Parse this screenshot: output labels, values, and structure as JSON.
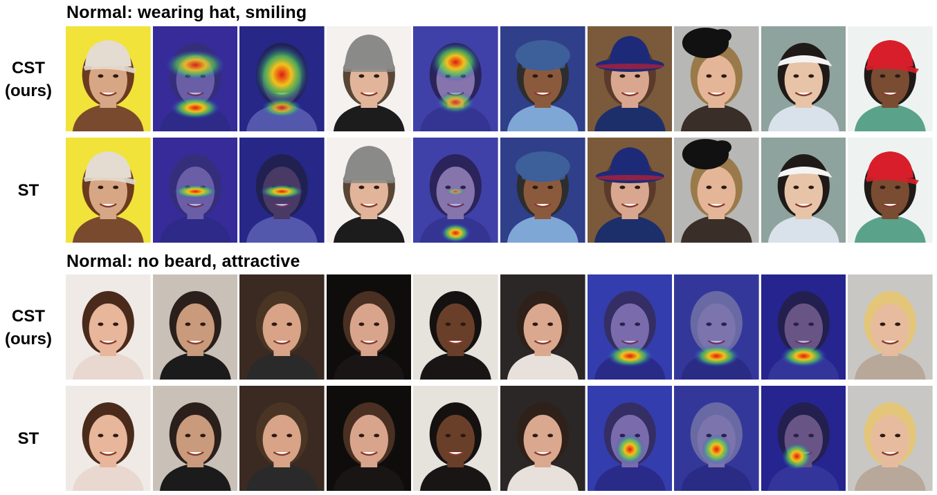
{
  "sections": [
    {
      "title": "Normal: wearing hat, smiling",
      "rows": [
        {
          "label": "CST\n(ours)",
          "cells": [
            {
              "bg": "#f1e33a",
              "skin": "#d7a785",
              "hair": "#6b3a1f",
              "shirt": "#7a4a2e",
              "hat": "cap",
              "hatColor": "#e4dcd0",
              "heat": "none"
            },
            {
              "bg": "#3c2a88",
              "skin": "#8c7a9e",
              "hair": "#3b2e5a",
              "shirt": "#2e2a6e",
              "hat": "none",
              "hatColor": "",
              "heat": "hat-mouth"
            },
            {
              "bg": "#24246e",
              "skin": "#5a3f3a",
              "hair": "#1b1b1b",
              "shirt": "#6a6fa8",
              "hat": "none",
              "hatColor": "",
              "heat": "full"
            },
            {
              "bg": "#f4f1ee",
              "skin": "#e2b59a",
              "hair": "#5a4636",
              "shirt": "#1c1c1c",
              "hat": "beanie",
              "hatColor": "#8a8a88",
              "heat": "none"
            },
            {
              "bg": "#4a4ca0",
              "skin": "#b79aa8",
              "hair": "#2a1f2a",
              "shirt": "#3a3a80",
              "hat": "none",
              "hatColor": "",
              "heat": "face"
            },
            {
              "bg": "#2f3f8a",
              "skin": "#8b5a3c",
              "hair": "#2d2d2d",
              "shirt": "#7fa7d6",
              "hat": "newsboy",
              "hatColor": "#3d5f9a",
              "heat": "none"
            },
            {
              "bg": "#7a5a3a",
              "skin": "#d9a78f",
              "hair": "#5a3a2a",
              "shirt": "#1d2f6a",
              "hat": "bucket",
              "hatColor": "#1d2a78",
              "heat": "none"
            },
            {
              "bg": "#b7b7b5",
              "skin": "#e4b697",
              "hair": "#9a7a4a",
              "shirt": "#3a2e28",
              "hat": "fascinator",
              "hatColor": "#111111",
              "heat": "none"
            },
            {
              "bg": "#8fa39e",
              "skin": "#e7c4a8",
              "hair": "#1f1a18",
              "shirt": "#d9e2ea",
              "hat": "visor",
              "hatColor": "#f4f4f4",
              "heat": "none"
            },
            {
              "bg": "#eef3f1",
              "skin": "#7a4c32",
              "hair": "#1f1a18",
              "shirt": "#5aa38a",
              "hat": "cap",
              "hatColor": "#d81e2a",
              "heat": "none"
            }
          ]
        },
        {
          "label": "ST",
          "cells": [
            {
              "bg": "#f1e33a",
              "skin": "#d7a785",
              "hair": "#6b3a1f",
              "shirt": "#7a4a2e",
              "hat": "cap",
              "hatColor": "#e4dcd0",
              "heat": "none"
            },
            {
              "bg": "#3c2a88",
              "skin": "#8c7a9e",
              "hair": "#3b2e5a",
              "shirt": "#2e2a6e",
              "hat": "none",
              "hatColor": "",
              "heat": "eyes"
            },
            {
              "bg": "#24246e",
              "skin": "#5a3f3a",
              "hair": "#1b1b1b",
              "shirt": "#6a6fa8",
              "hat": "none",
              "hatColor": "",
              "heat": "eyes"
            },
            {
              "bg": "#f4f1ee",
              "skin": "#e2b59a",
              "hair": "#5a4636",
              "shirt": "#1c1c1c",
              "hat": "beanie",
              "hatColor": "#8a8a88",
              "heat": "none"
            },
            {
              "bg": "#4a4ca0",
              "skin": "#b79aa8",
              "hair": "#2a1f2a",
              "shirt": "#3a3a80",
              "hat": "none",
              "hatColor": "",
              "heat": "chin"
            },
            {
              "bg": "#2f3f8a",
              "skin": "#8b5a3c",
              "hair": "#2d2d2d",
              "shirt": "#7fa7d6",
              "hat": "newsboy",
              "hatColor": "#3d5f9a",
              "heat": "none"
            },
            {
              "bg": "#7a5a3a",
              "skin": "#d9a78f",
              "hair": "#5a3a2a",
              "shirt": "#1d2f6a",
              "hat": "bucket",
              "hatColor": "#1d2a78",
              "heat": "none"
            },
            {
              "bg": "#b7b7b5",
              "skin": "#e4b697",
              "hair": "#9a7a4a",
              "shirt": "#3a2e28",
              "hat": "fascinator",
              "hatColor": "#111111",
              "heat": "none"
            },
            {
              "bg": "#8fa39e",
              "skin": "#e7c4a8",
              "hair": "#1f1a18",
              "shirt": "#d9e2ea",
              "hat": "visor",
              "hatColor": "#f4f4f4",
              "heat": "none"
            },
            {
              "bg": "#eef3f1",
              "skin": "#7a4c32",
              "hair": "#1f1a18",
              "shirt": "#5aa38a",
              "hat": "cap",
              "hatColor": "#d81e2a",
              "heat": "none"
            }
          ]
        }
      ]
    },
    {
      "title": "Normal: no beard, attractive",
      "rows": [
        {
          "label": "CST\n(ours)",
          "cells": [
            {
              "bg": "#efeae6",
              "skin": "#e7b69b",
              "hair": "#4a2a1a",
              "shirt": "#e9d8cf",
              "hat": "none",
              "hatColor": "",
              "heat": "none"
            },
            {
              "bg": "#c9c1b8",
              "skin": "#c99a7b",
              "hair": "#2a1f1a",
              "shirt": "#1b1b1b",
              "hat": "none",
              "hatColor": "",
              "heat": "none"
            },
            {
              "bg": "#3a2a22",
              "skin": "#d8a386",
              "hair": "#4a3524",
              "shirt": "#2a2a2a",
              "hat": "none",
              "hatColor": "",
              "heat": "none"
            },
            {
              "bg": "#0f0d0c",
              "skin": "#d8a58c",
              "hair": "#4a3022",
              "shirt": "#1a1515",
              "hat": "none",
              "hatColor": "",
              "heat": "none"
            },
            {
              "bg": "#e6e2dc",
              "skin": "#6a3f2a",
              "hair": "#151111",
              "shirt": "#1a1515",
              "hat": "none",
              "hatColor": "",
              "heat": "none"
            },
            {
              "bg": "#2a2726",
              "skin": "#d9a88f",
              "hair": "#2f2019",
              "shirt": "#e8e0da",
              "hat": "none",
              "hatColor": "",
              "heat": "none"
            },
            {
              "bg": "#3846a8",
              "skin": "#a58ea6",
              "hair": "#3a2f3a",
              "shirt": "#2a2a70",
              "hat": "none",
              "hatColor": "",
              "heat": "mouth"
            },
            {
              "bg": "#3a3c8a",
              "skin": "#a89aa8",
              "hair": "#8a8a9a",
              "shirt": "#2a2a6a",
              "hat": "none",
              "hatColor": "",
              "heat": "mouth"
            },
            {
              "bg": "#24207a",
              "skin": "#8a6a6a",
              "hair": "#1f1a18",
              "shirt": "#3a3a8a",
              "hat": "none",
              "hatColor": "",
              "heat": "mouth"
            },
            {
              "bg": "#c9c7c4",
              "skin": "#e7bb9d",
              "hair": "#e3c679",
              "shirt": "#b7a89a",
              "hat": "none",
              "hatColor": "",
              "heat": "none"
            }
          ]
        },
        {
          "label": "ST",
          "cells": [
            {
              "bg": "#efeae6",
              "skin": "#e7b69b",
              "hair": "#4a2a1a",
              "shirt": "#e9d8cf",
              "hat": "none",
              "hatColor": "",
              "heat": "none"
            },
            {
              "bg": "#c9c1b8",
              "skin": "#c99a7b",
              "hair": "#2a1f1a",
              "shirt": "#1b1b1b",
              "hat": "none",
              "hatColor": "",
              "heat": "none"
            },
            {
              "bg": "#3a2a22",
              "skin": "#d8a386",
              "hair": "#4a3524",
              "shirt": "#2a2a2a",
              "hat": "none",
              "hatColor": "",
              "heat": "none"
            },
            {
              "bg": "#0f0d0c",
              "skin": "#d8a58c",
              "hair": "#4a3022",
              "shirt": "#1a1515",
              "hat": "none",
              "hatColor": "",
              "heat": "none"
            },
            {
              "bg": "#e6e2dc",
              "skin": "#6a3f2a",
              "hair": "#151111",
              "shirt": "#1a1515",
              "hat": "none",
              "hatColor": "",
              "heat": "none"
            },
            {
              "bg": "#2a2726",
              "skin": "#d9a88f",
              "hair": "#2f2019",
              "shirt": "#e8e0da",
              "hat": "none",
              "hatColor": "",
              "heat": "none"
            },
            {
              "bg": "#3846a8",
              "skin": "#a58ea6",
              "hair": "#3a2f3a",
              "shirt": "#2a2a70",
              "hat": "none",
              "hatColor": "",
              "heat": "nose"
            },
            {
              "bg": "#3a3c8a",
              "skin": "#a89aa8",
              "hair": "#8a8a9a",
              "shirt": "#2a2a6a",
              "hat": "none",
              "hatColor": "",
              "heat": "nose"
            },
            {
              "bg": "#24207a",
              "skin": "#8a6a6a",
              "hair": "#1f1a18",
              "shirt": "#3a3a8a",
              "hat": "none",
              "hatColor": "",
              "heat": "cheek"
            },
            {
              "bg": "#c9c7c4",
              "skin": "#e7bb9d",
              "hair": "#e3c679",
              "shirt": "#b7a89a",
              "hat": "none",
              "hatColor": "",
              "heat": "none"
            }
          ]
        }
      ]
    }
  ]
}
